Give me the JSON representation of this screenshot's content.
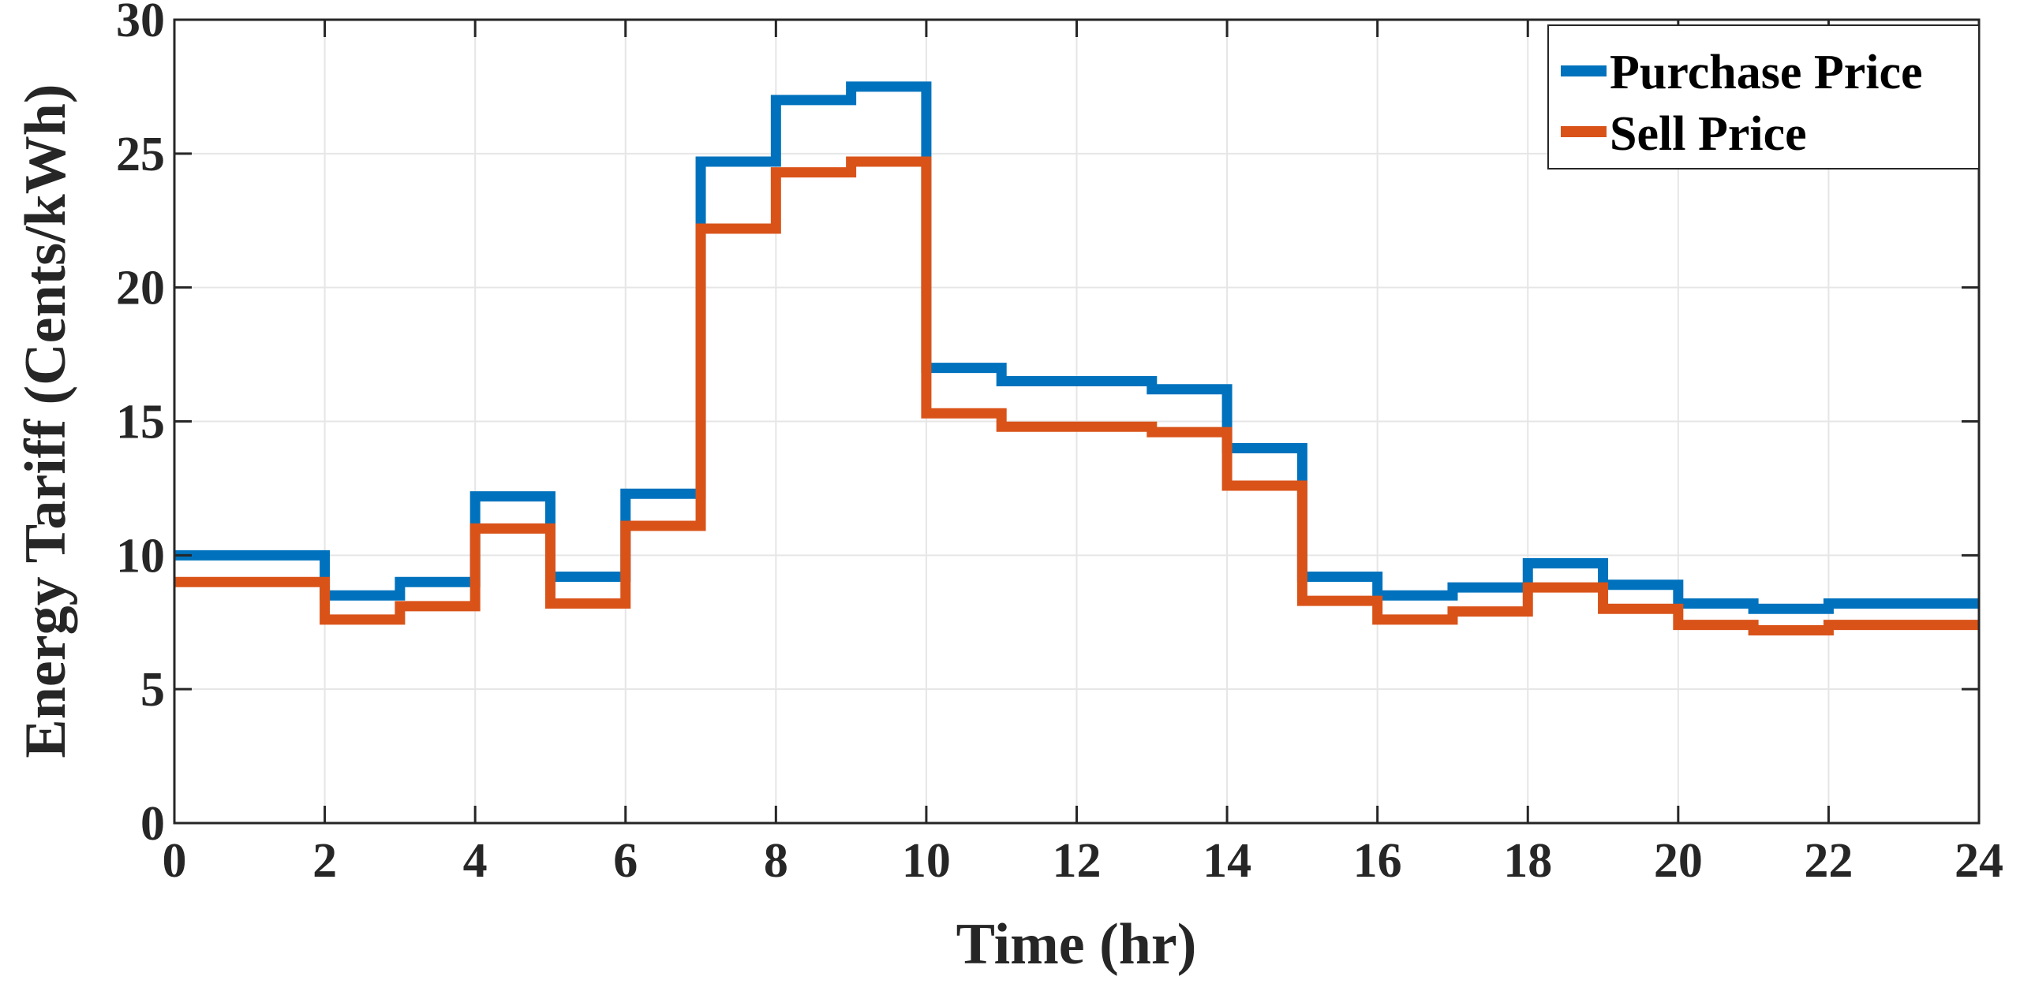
{
  "chart_data": {
    "type": "line",
    "step": true,
    "xlabel": "Time (hr)",
    "ylabel": "Energy Tariff (Cents/kWh)",
    "xlim": [
      0,
      24
    ],
    "ylim": [
      0,
      30
    ],
    "xticks": [
      0,
      2,
      4,
      6,
      8,
      10,
      12,
      14,
      16,
      18,
      20,
      22,
      24
    ],
    "yticks": [
      0,
      5,
      10,
      15,
      20,
      25,
      30
    ],
    "grid": true,
    "legend_position": "top-right",
    "x": [
      0,
      1,
      2,
      3,
      4,
      5,
      6,
      7,
      8,
      9,
      10,
      11,
      12,
      13,
      14,
      15,
      16,
      17,
      18,
      19,
      20,
      21,
      22,
      23,
      24
    ],
    "series": [
      {
        "name": "Purchase Price",
        "color": "#0072BD",
        "values": [
          10.0,
          10.0,
          8.5,
          9.0,
          12.2,
          9.2,
          12.3,
          24.7,
          27.0,
          27.5,
          17.0,
          16.5,
          16.5,
          16.2,
          14.0,
          9.2,
          8.5,
          8.8,
          9.7,
          8.9,
          8.2,
          8.0,
          8.2,
          8.2,
          8.2
        ]
      },
      {
        "name": "Sell Price",
        "color": "#D95319",
        "values": [
          9.0,
          9.0,
          7.6,
          8.1,
          11.0,
          8.2,
          11.1,
          22.2,
          24.3,
          24.7,
          15.3,
          14.8,
          14.8,
          14.6,
          12.6,
          8.3,
          7.6,
          7.9,
          8.8,
          8.0,
          7.4,
          7.2,
          7.4,
          7.4,
          7.4
        ]
      }
    ]
  }
}
